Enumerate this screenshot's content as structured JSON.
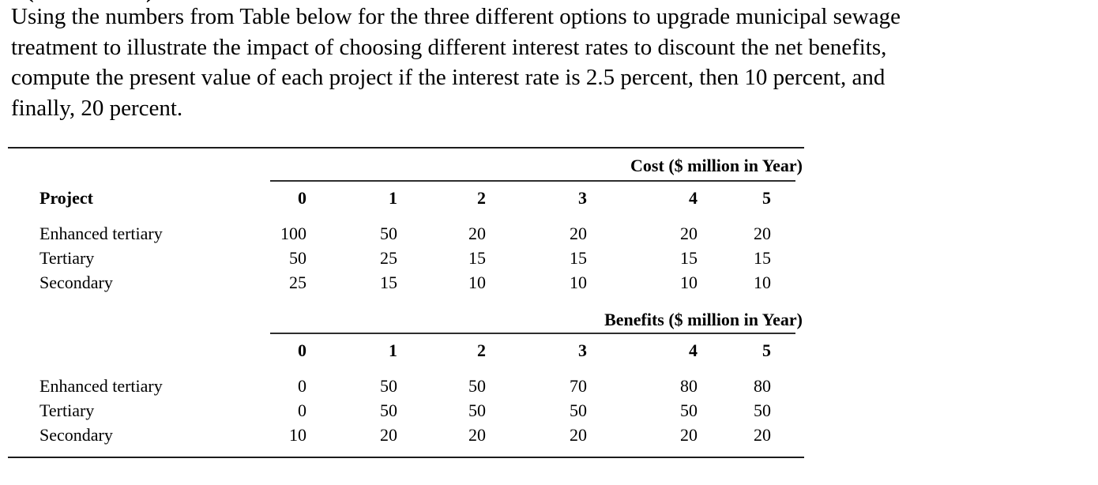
{
  "fragment": {
    "left_glyph": "(",
    "right_glyph": ")"
  },
  "question": {
    "lines": [
      "Using the numbers from Table below for the three different options to upgrade municipal sewage",
      "treatment to illustrate the impact of choosing different interest rates to discount the net benefits,",
      "compute the present value of each project if the interest rate is 2.5 percent, then 10 percent, and",
      "finally, 20 percent."
    ]
  },
  "table": {
    "project_col_label": "Project",
    "cost_section": {
      "header": "Cost ($ million in Year)",
      "year_headers": [
        "0",
        "1",
        "2",
        "3",
        "4",
        "5"
      ],
      "rows": [
        {
          "label": "Enhanced tertiary",
          "values": [
            100,
            50,
            20,
            20,
            20,
            20
          ]
        },
        {
          "label": "Tertiary",
          "values": [
            50,
            25,
            15,
            15,
            15,
            15
          ]
        },
        {
          "label": "Secondary",
          "values": [
            25,
            15,
            10,
            10,
            10,
            10
          ]
        }
      ]
    },
    "benefits_section": {
      "header": "Benefits ($ million in Year)",
      "year_headers": [
        "0",
        "1",
        "2",
        "3",
        "4",
        "5"
      ],
      "rows": [
        {
          "label": "Enhanced tertiary",
          "values": [
            0,
            50,
            50,
            70,
            80,
            80
          ]
        },
        {
          "label": "Tertiary",
          "values": [
            0,
            50,
            50,
            50,
            50,
            50
          ]
        },
        {
          "label": "Secondary",
          "values": [
            10,
            20,
            20,
            20,
            20,
            20
          ]
        }
      ]
    }
  }
}
